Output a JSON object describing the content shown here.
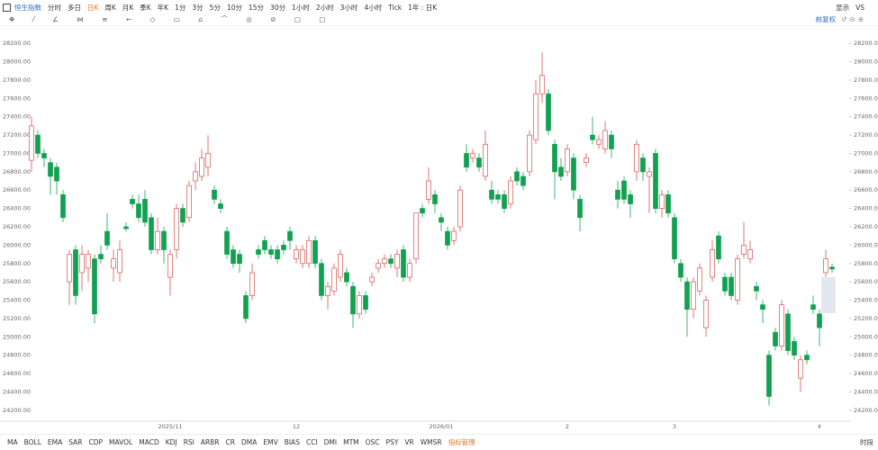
{
  "toolbar": {
    "symbol": "恒生指数",
    "periods": [
      "分时",
      "多日",
      "日K",
      "周K",
      "月K",
      "季K",
      "年K",
      "1分",
      "3分",
      "5分",
      "10分",
      "15分",
      "30分",
      "1小时",
      "2小时",
      "3小时",
      "4小时",
      "Tick",
      "1年 : 日K"
    ],
    "active_period": 2,
    "right": [
      "显示",
      "VS"
    ],
    "adjust": "前复权"
  },
  "indicators": {
    "items": [
      "MA",
      "BOLL",
      "EMA",
      "SAR",
      "CDP",
      "MAVOL",
      "MACD",
      "KDJ",
      "RSI",
      "ARBR",
      "CR",
      "DMA",
      "EMV",
      "BIAS",
      "CCI",
      "DMI",
      "MTM",
      "OSC",
      "PSY",
      "VR",
      "WMSR",
      "指标管理"
    ],
    "active": 21,
    "right": "时段"
  },
  "chart_data": {
    "type": "candlestick",
    "up_color": "#d9534f",
    "down_color": "#12a150",
    "grid": false,
    "ylim": [
      24100,
      28300
    ],
    "yticks": [
      {
        "value": 24200,
        "label": "24200.00"
      },
      {
        "value": 24400,
        "label": "24400.00"
      },
      {
        "value": 24600,
        "label": "24600.00"
      },
      {
        "value": 24800,
        "label": "24800.00"
      },
      {
        "value": 25000,
        "label": "25000.00"
      },
      {
        "value": 25200,
        "label": "25200.00"
      },
      {
        "value": 25400,
        "label": "25400.00"
      },
      {
        "value": 25600,
        "label": "25600.00"
      },
      {
        "value": 25800,
        "label": "25800.00"
      },
      {
        "value": 26000,
        "label": "26000.00"
      },
      {
        "value": 26200,
        "label": "26200.00"
      },
      {
        "value": 26400,
        "label": "26400.00"
      },
      {
        "value": 26600,
        "label": "26600.00"
      },
      {
        "value": 26800,
        "label": "26800.00"
      },
      {
        "value": 27000,
        "label": "27000.00"
      },
      {
        "value": 27200,
        "label": "27200.00"
      },
      {
        "value": 27400,
        "label": "27400.00"
      },
      {
        "value": 27600,
        "label": "27600.00"
      },
      {
        "value": 27800,
        "label": "27800.00"
      },
      {
        "value": 28000,
        "label": "28000.00"
      },
      {
        "value": 28200,
        "label": "28200.00"
      }
    ],
    "categories": [
      null,
      null,
      null,
      null,
      null,
      null,
      null,
      null,
      null,
      null,
      null,
      null,
      null,
      null,
      null,
      null,
      null,
      null,
      null,
      null,
      null,
      null,
      "2025/11",
      null,
      null,
      null,
      null,
      null,
      null,
      null,
      null,
      null,
      null,
      null,
      null,
      null,
      null,
      null,
      null,
      null,
      null,
      null,
      "12",
      null,
      null,
      null,
      null,
      null,
      null,
      null,
      null,
      null,
      null,
      null,
      null,
      null,
      null,
      null,
      null,
      null,
      null,
      null,
      null,
      null,
      null,
      "2026/01",
      null,
      null,
      null,
      null,
      null,
      null,
      null,
      null,
      null,
      null,
      null,
      null,
      null,
      null,
      null,
      null,
      null,
      null,
      null,
      "2",
      null,
      null,
      null,
      null,
      null,
      null,
      null,
      null,
      null,
      null,
      null,
      null,
      null,
      null,
      null,
      null,
      "3",
      null,
      null,
      null,
      null,
      null,
      null,
      null,
      null,
      null,
      null,
      null,
      null,
      null,
      null,
      null,
      null,
      null,
      null,
      null,
      null,
      null,
      null,
      "4",
      null,
      null
    ],
    "ohlc": [
      [
        26925,
        27400,
        26800,
        27300
      ],
      [
        27200,
        27250,
        26950,
        27000
      ],
      [
        27000,
        27050,
        26850,
        26950
      ],
      [
        26900,
        26950,
        26550,
        26750
      ],
      [
        26850,
        26900,
        26550,
        26700
      ],
      [
        26550,
        26600,
        26250,
        26300
      ],
      [
        25600,
        25950,
        25350,
        25900
      ],
      [
        25950,
        26000,
        25350,
        25450
      ],
      [
        25700,
        26000,
        25500,
        25900
      ],
      [
        25750,
        25950,
        25600,
        25900
      ],
      [
        25850,
        25900,
        25150,
        25250
      ],
      [
        25900,
        26000,
        25800,
        25850
      ],
      [
        26150,
        26350,
        25950,
        26000
      ],
      [
        25750,
        25950,
        25600,
        25850
      ],
      [
        25700,
        26050,
        25600,
        25950
      ],
      [
        26200,
        26250,
        26150,
        26180
      ],
      [
        26500,
        26550,
        26400,
        26450
      ],
      [
        26450,
        26550,
        26250,
        26300
      ],
      [
        26500,
        26600,
        26200,
        26250
      ],
      [
        26300,
        26350,
        25900,
        25950
      ],
      [
        25950,
        26300,
        25900,
        26150
      ],
      [
        26150,
        26200,
        25800,
        25950
      ],
      [
        25650,
        25950,
        25450,
        25900
      ],
      [
        25950,
        26450,
        25850,
        26400
      ],
      [
        26400,
        26450,
        26200,
        26250
      ],
      [
        26300,
        26700,
        26250,
        26650
      ],
      [
        26700,
        26900,
        26600,
        26800
      ],
      [
        26750,
        27050,
        26700,
        26950
      ],
      [
        26850,
        27200,
        26750,
        27000
      ],
      [
        26600,
        26650,
        26450,
        26500
      ],
      [
        26450,
        26500,
        26350,
        26400
      ],
      [
        26150,
        26200,
        25850,
        25900
      ],
      [
        25950,
        26000,
        25750,
        25800
      ],
      [
        25900,
        25950,
        25700,
        25800
      ],
      [
        25450,
        25500,
        25150,
        25200
      ],
      [
        25450,
        25800,
        25400,
        25700
      ],
      [
        25950,
        26000,
        25850,
        25900
      ],
      [
        26050,
        26100,
        25900,
        25950
      ],
      [
        25950,
        26000,
        25850,
        25900
      ],
      [
        25950,
        26000,
        25800,
        25850
      ],
      [
        26000,
        26050,
        25900,
        25950
      ],
      [
        26150,
        26200,
        25950,
        26050
      ],
      [
        25850,
        26000,
        25800,
        25950
      ],
      [
        25800,
        26000,
        25750,
        25950
      ],
      [
        25800,
        26100,
        25750,
        26050
      ],
      [
        26050,
        26100,
        25750,
        25800
      ],
      [
        25800,
        25850,
        25400,
        25450
      ],
      [
        25450,
        25600,
        25300,
        25550
      ],
      [
        25500,
        25800,
        25450,
        25750
      ],
      [
        25650,
        25950,
        25600,
        25900
      ],
      [
        25700,
        25750,
        25550,
        25600
      ],
      [
        25550,
        25600,
        25100,
        25250
      ],
      [
        25250,
        25500,
        25200,
        25450
      ],
      [
        25450,
        25500,
        25250,
        25300
      ],
      [
        25600,
        25700,
        25550,
        25650
      ],
      [
        25750,
        25850,
        25700,
        25800
      ],
      [
        25800,
        25900,
        25750,
        25850
      ],
      [
        25850,
        25900,
        25750,
        25800
      ],
      [
        25750,
        25950,
        25650,
        25900
      ],
      [
        25950,
        26000,
        25600,
        25650
      ],
      [
        25650,
        25850,
        25600,
        25800
      ],
      [
        25850,
        26350,
        25800,
        26350
      ],
      [
        26400,
        26450,
        26300,
        26350
      ],
      [
        26500,
        26850,
        26450,
        26700
      ],
      [
        26550,
        26600,
        26350,
        26450
      ],
      [
        26300,
        26350,
        26150,
        26250
      ],
      [
        26150,
        26200,
        25950,
        26000
      ],
      [
        26050,
        26200,
        26000,
        26150
      ],
      [
        26200,
        26650,
        26150,
        26600
      ],
      [
        27000,
        27100,
        26800,
        26850
      ],
      [
        26950,
        27050,
        26900,
        27000
      ],
      [
        26950,
        27000,
        26800,
        26850
      ],
      [
        26750,
        27250,
        26700,
        27100
      ],
      [
        26600,
        26700,
        26450,
        26500
      ],
      [
        26550,
        26600,
        26450,
        26500
      ],
      [
        26550,
        26600,
        26350,
        26400
      ],
      [
        26450,
        26750,
        26400,
        26700
      ],
      [
        26800,
        26850,
        26650,
        26700
      ],
      [
        26750,
        26800,
        26600,
        26650
      ],
      [
        26800,
        27250,
        26750,
        27200
      ],
      [
        27150,
        27800,
        27100,
        27650
      ],
      [
        27650,
        28100,
        27550,
        27850
      ],
      [
        27650,
        27700,
        27200,
        27250
      ],
      [
        27100,
        27150,
        26500,
        26800
      ],
      [
        26850,
        26950,
        26700,
        26750
      ],
      [
        26800,
        27100,
        26750,
        27050
      ],
      [
        26950,
        27000,
        26500,
        26600
      ],
      [
        26500,
        26550,
        26150,
        26300
      ],
      [
        26900,
        27000,
        26850,
        26950
      ],
      [
        27200,
        27400,
        27100,
        27150
      ],
      [
        27100,
        27200,
        27050,
        27150
      ],
      [
        27050,
        27350,
        27000,
        27250
      ],
      [
        27200,
        27250,
        26950,
        27050
      ],
      [
        26600,
        26700,
        26400,
        26500
      ],
      [
        26700,
        26750,
        26450,
        26500
      ],
      [
        26550,
        26600,
        26300,
        26450
      ],
      [
        26800,
        27150,
        26700,
        27100
      ],
      [
        26950,
        27000,
        26700,
        26800
      ],
      [
        26750,
        26850,
        26350,
        26800
      ],
      [
        27000,
        27050,
        26350,
        26400
      ],
      [
        26400,
        26600,
        26300,
        26550
      ],
      [
        26550,
        26600,
        26300,
        26350
      ],
      [
        26300,
        26350,
        25800,
        25850
      ],
      [
        25800,
        25850,
        25600,
        25650
      ],
      [
        25600,
        25650,
        25000,
        25300
      ],
      [
        25300,
        25650,
        25200,
        25600
      ],
      [
        25500,
        25800,
        25450,
        25750
      ],
      [
        25100,
        25450,
        25000,
        25400
      ],
      [
        25650,
        26050,
        25600,
        25950
      ],
      [
        26100,
        26150,
        25800,
        25850
      ],
      [
        25650,
        25700,
        25450,
        25500
      ],
      [
        25650,
        25700,
        25400,
        25450
      ],
      [
        25400,
        25900,
        25350,
        25850
      ],
      [
        25900,
        26250,
        25850,
        26000
      ],
      [
        25850,
        26050,
        25800,
        25950
      ],
      [
        25550,
        25600,
        25400,
        25500
      ],
      [
        25350,
        25400,
        25150,
        25300
      ],
      [
        24800,
        24850,
        24250,
        24350
      ],
      [
        25050,
        25100,
        24850,
        24900
      ],
      [
        24900,
        25400,
        24850,
        25350
      ],
      [
        25250,
        25300,
        24800,
        24850
      ],
      [
        24950,
        25000,
        24750,
        24800
      ],
      [
        24550,
        24800,
        24400,
        24750
      ],
      [
        24800,
        24850,
        24700,
        24750
      ],
      [
        25350,
        25450,
        25250,
        25300
      ],
      [
        25250,
        25300,
        24900,
        25100
      ],
      [
        25700,
        25950,
        25650,
        25850
      ],
      [
        25760,
        25800,
        25700,
        25740
      ]
    ]
  }
}
